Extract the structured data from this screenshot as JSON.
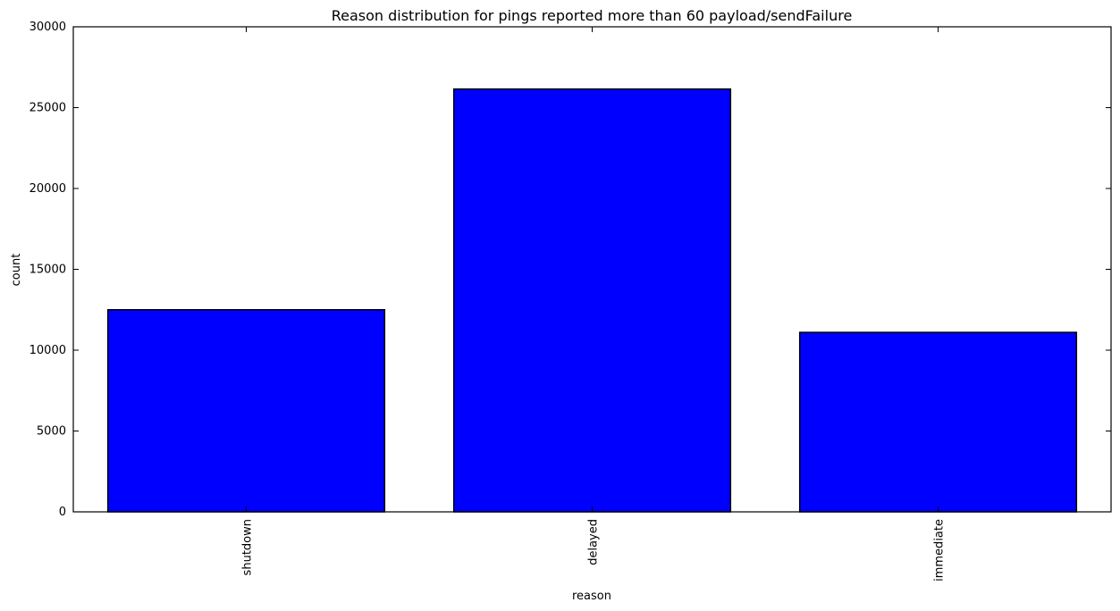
{
  "chart_data": {
    "type": "bar",
    "title": "Reason distribution for pings reported more than 60 payload/sendFailure",
    "xlabel": "reason",
    "ylabel": "count",
    "categories": [
      "shutdown",
      "delayed",
      "immediate"
    ],
    "values": [
      12500,
      26150,
      11100
    ],
    "ylim": [
      0,
      30000
    ],
    "yticks": [
      0,
      5000,
      10000,
      15000,
      20000,
      25000,
      30000
    ],
    "ytick_labels": [
      "0",
      "5000",
      "10000",
      "15000",
      "20000",
      "25000",
      "30000"
    ],
    "grid": false,
    "legend": "none",
    "bar_color": "#0000ff",
    "edge_color": "#000000",
    "xtick_rotation": "vertical"
  }
}
